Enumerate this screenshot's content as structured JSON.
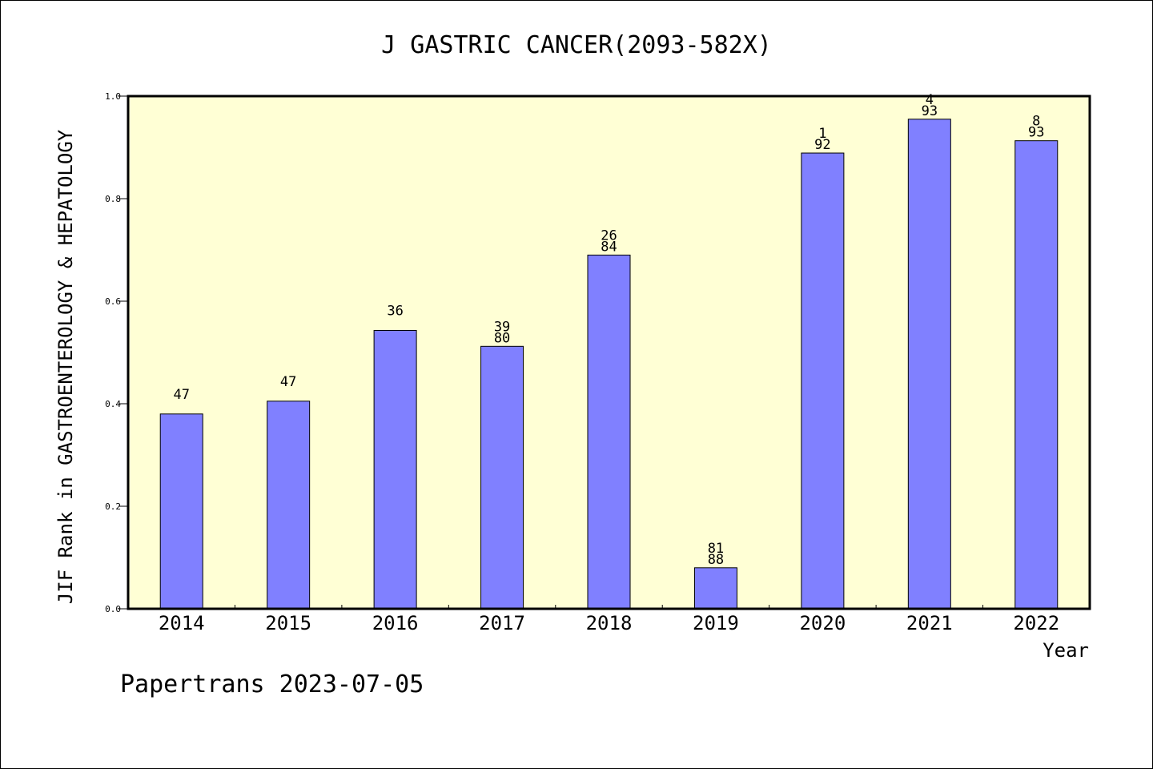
{
  "chart_data": {
    "type": "bar",
    "title": "J GASTRIC CANCER(2093-582X)",
    "xlabel": "Year",
    "ylabel": "JIF Rank in GASTROENTEROLOGY & HEPATOLOGY",
    "ylim": [
      0,
      1
    ],
    "yticks": [
      "0.0",
      "0.2",
      "0.4",
      "0.6",
      "0.8",
      "1.0"
    ],
    "categories": [
      "2014",
      "2015",
      "2016",
      "2017",
      "2018",
      "2019",
      "2020",
      "2021",
      "2022"
    ],
    "values": [
      0.38,
      0.405,
      0.543,
      0.512,
      0.69,
      0.08,
      0.889,
      0.955,
      0.913
    ],
    "rank_labels": [
      [
        "47"
      ],
      [
        "47"
      ],
      [
        "36"
      ],
      [
        "39",
        "80"
      ],
      [
        "26",
        "84"
      ],
      [
        "81",
        "88"
      ],
      [
        "1",
        "92"
      ],
      [
        "4",
        "93"
      ],
      [
        "8",
        "93"
      ]
    ],
    "colors": {
      "bar": "#8080ff",
      "plot_background": "#ffffd5",
      "axis": "#000000"
    }
  },
  "footer": "Papertrans 2023-07-05"
}
